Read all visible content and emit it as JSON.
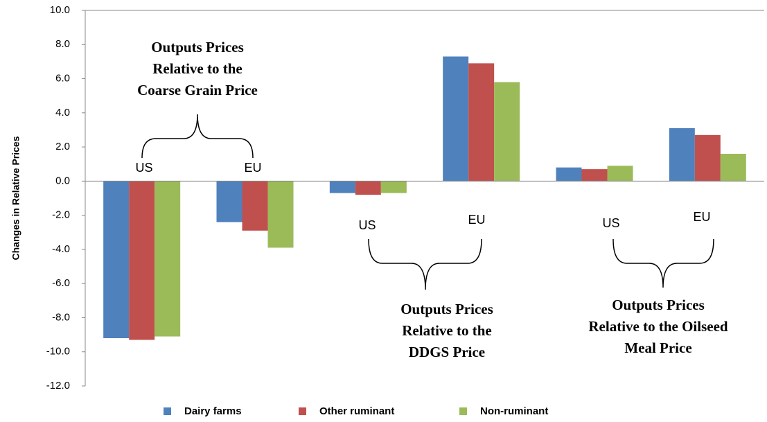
{
  "chart_data": {
    "type": "bar",
    "y_label": "Changes in Relative Prices",
    "categories": [
      null,
      null,
      null,
      null,
      null,
      null
    ],
    "series": [
      {
        "name": "Dairy farms",
        "color": "#4f81bd",
        "values": [
          -9.2,
          -2.4,
          -0.7,
          7.3,
          0.8,
          3.1
        ]
      },
      {
        "name": "Other ruminant",
        "color": "#c0504d",
        "values": [
          -9.3,
          -2.9,
          -0.8,
          6.9,
          0.7,
          2.7
        ]
      },
      {
        "name": "Non-ruminant",
        "color": "#9bbb59",
        "values": [
          -9.1,
          -3.9,
          -0.7,
          5.8,
          0.9,
          1.6
        ]
      }
    ],
    "ylim": [
      -12,
      10
    ],
    "yticks": [
      {
        "value": -12,
        "label": "-12.0"
      },
      {
        "value": -10,
        "label": "-10.0"
      },
      {
        "value": -8,
        "label": "-8.0"
      },
      {
        "value": -6,
        "label": "-6.0"
      },
      {
        "value": -4,
        "label": "-4.0"
      },
      {
        "value": -2,
        "label": "-2.0"
      },
      {
        "value": 0,
        "label": "0.0"
      },
      {
        "value": 2,
        "label": "2.0"
      },
      {
        "value": 4,
        "label": "4.0"
      },
      {
        "value": 6,
        "label": "6.0"
      },
      {
        "value": 8,
        "label": "8.0"
      },
      {
        "value": 10,
        "label": "10.0"
      }
    ],
    "grid": false,
    "legend": "bottom",
    "annotations": [
      "US",
      "EU",
      "US",
      "EU",
      "US",
      "EU"
    ],
    "group_labels": [
      [
        "Outputs Prices",
        "Relative to the",
        "Coarse Grain Price"
      ],
      [
        "Outputs Prices",
        "Relative to the",
        "DDGS Price"
      ],
      [
        "Outputs Prices",
        "Relative to the Oilseed",
        "Meal  Price"
      ]
    ]
  }
}
